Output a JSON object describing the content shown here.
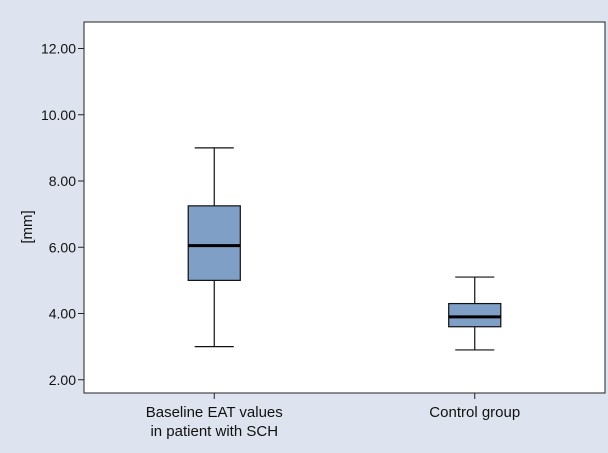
{
  "chart_data": {
    "type": "boxplot",
    "title": "",
    "xlabel": "",
    "ylabel": "[mm]",
    "ylim": [
      1.6,
      12.8
    ],
    "yticks": [
      "2.00",
      "4.00",
      "6.00",
      "8.00",
      "10.00",
      "12.00"
    ],
    "ytick_values": [
      2,
      4,
      6,
      8,
      10,
      12
    ],
    "categories": [
      [
        "Baseline EAT values",
        "in patient with SCH"
      ],
      [
        "Control group"
      ]
    ],
    "boxes": [
      {
        "whisker_low": 3.0,
        "q1": 5.0,
        "median": 6.05,
        "q3": 7.25,
        "whisker_high": 9.0
      },
      {
        "whisker_low": 2.9,
        "q1": 3.6,
        "median": 3.9,
        "q3": 4.3,
        "whisker_high": 5.1
      }
    ],
    "grid": false,
    "legend": "none",
    "colors": {
      "background": "#dde4ef",
      "plot_area": "#ffffff",
      "box_fill": "#7f9fc7",
      "box_stroke": "#111111",
      "median": "#000000"
    }
  }
}
